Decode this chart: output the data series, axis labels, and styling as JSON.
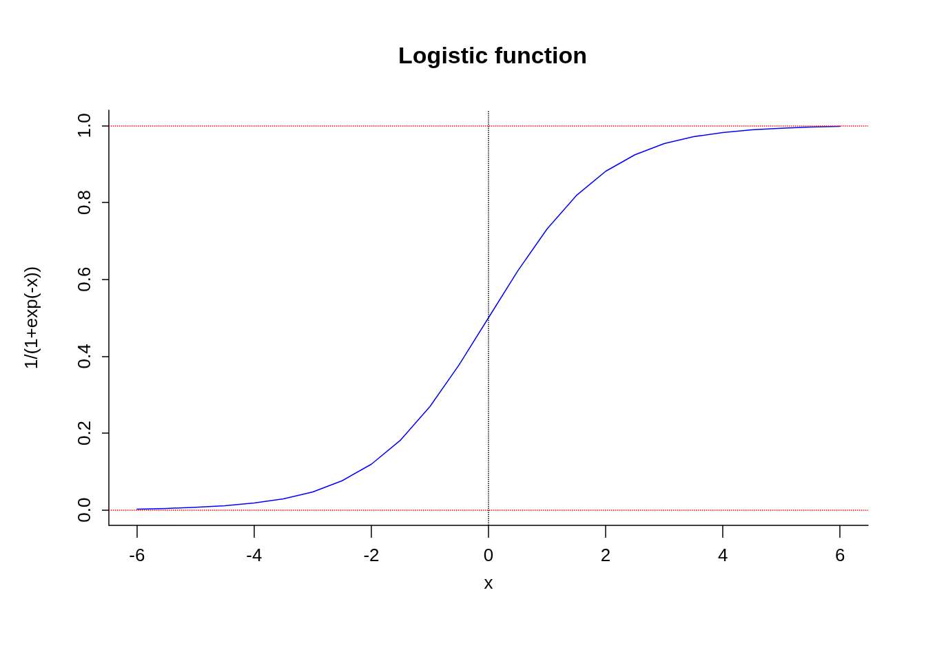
{
  "chart_data": {
    "type": "line",
    "title": "Logistic function",
    "xlabel": "x",
    "ylabel": "1/(1+exp(-x))",
    "x": [
      -6,
      -5.5,
      -5,
      -4.5,
      -4,
      -3.5,
      -3,
      -2.5,
      -2,
      -1.5,
      -1,
      -0.5,
      0,
      0.5,
      1,
      1.5,
      2,
      2.5,
      3,
      3.5,
      4,
      4.5,
      5,
      5.5,
      6
    ],
    "series": [
      {
        "color": "#0000ff",
        "values": [
          0.002,
          0.004,
          0.007,
          0.011,
          0.018,
          0.029,
          0.047,
          0.076,
          0.119,
          0.182,
          0.269,
          0.378,
          0.5,
          0.622,
          0.731,
          0.818,
          0.881,
          0.924,
          0.953,
          0.971,
          0.982,
          0.989,
          0.993,
          0.996,
          0.998
        ]
      }
    ],
    "xlim": [
      -6.48,
      6.48
    ],
    "xticks": [
      -6,
      -4,
      -2,
      0,
      2,
      4,
      6
    ],
    "ylim": [
      -0.04,
      1.04
    ],
    "yticks": [
      {
        "value": 0,
        "label": "0.0"
      },
      {
        "value": 0.2,
        "label": "0.2"
      },
      {
        "value": 0.4,
        "label": "0.4"
      },
      {
        "value": 0.6,
        "label": "0.6"
      },
      {
        "value": 0.8,
        "label": "0.8"
      },
      {
        "value": 1,
        "label": "1.0"
      }
    ],
    "ref_lines": [
      {
        "axis": "y",
        "value": 0,
        "color": "#ff0000",
        "line_style": "dotted"
      },
      {
        "axis": "y",
        "value": 1,
        "color": "#ff0000",
        "line_style": "dotted"
      },
      {
        "axis": "x",
        "value": 0,
        "color": "#000000",
        "line_style": "dotted"
      }
    ],
    "marker": "none",
    "line_style": "solid"
  }
}
